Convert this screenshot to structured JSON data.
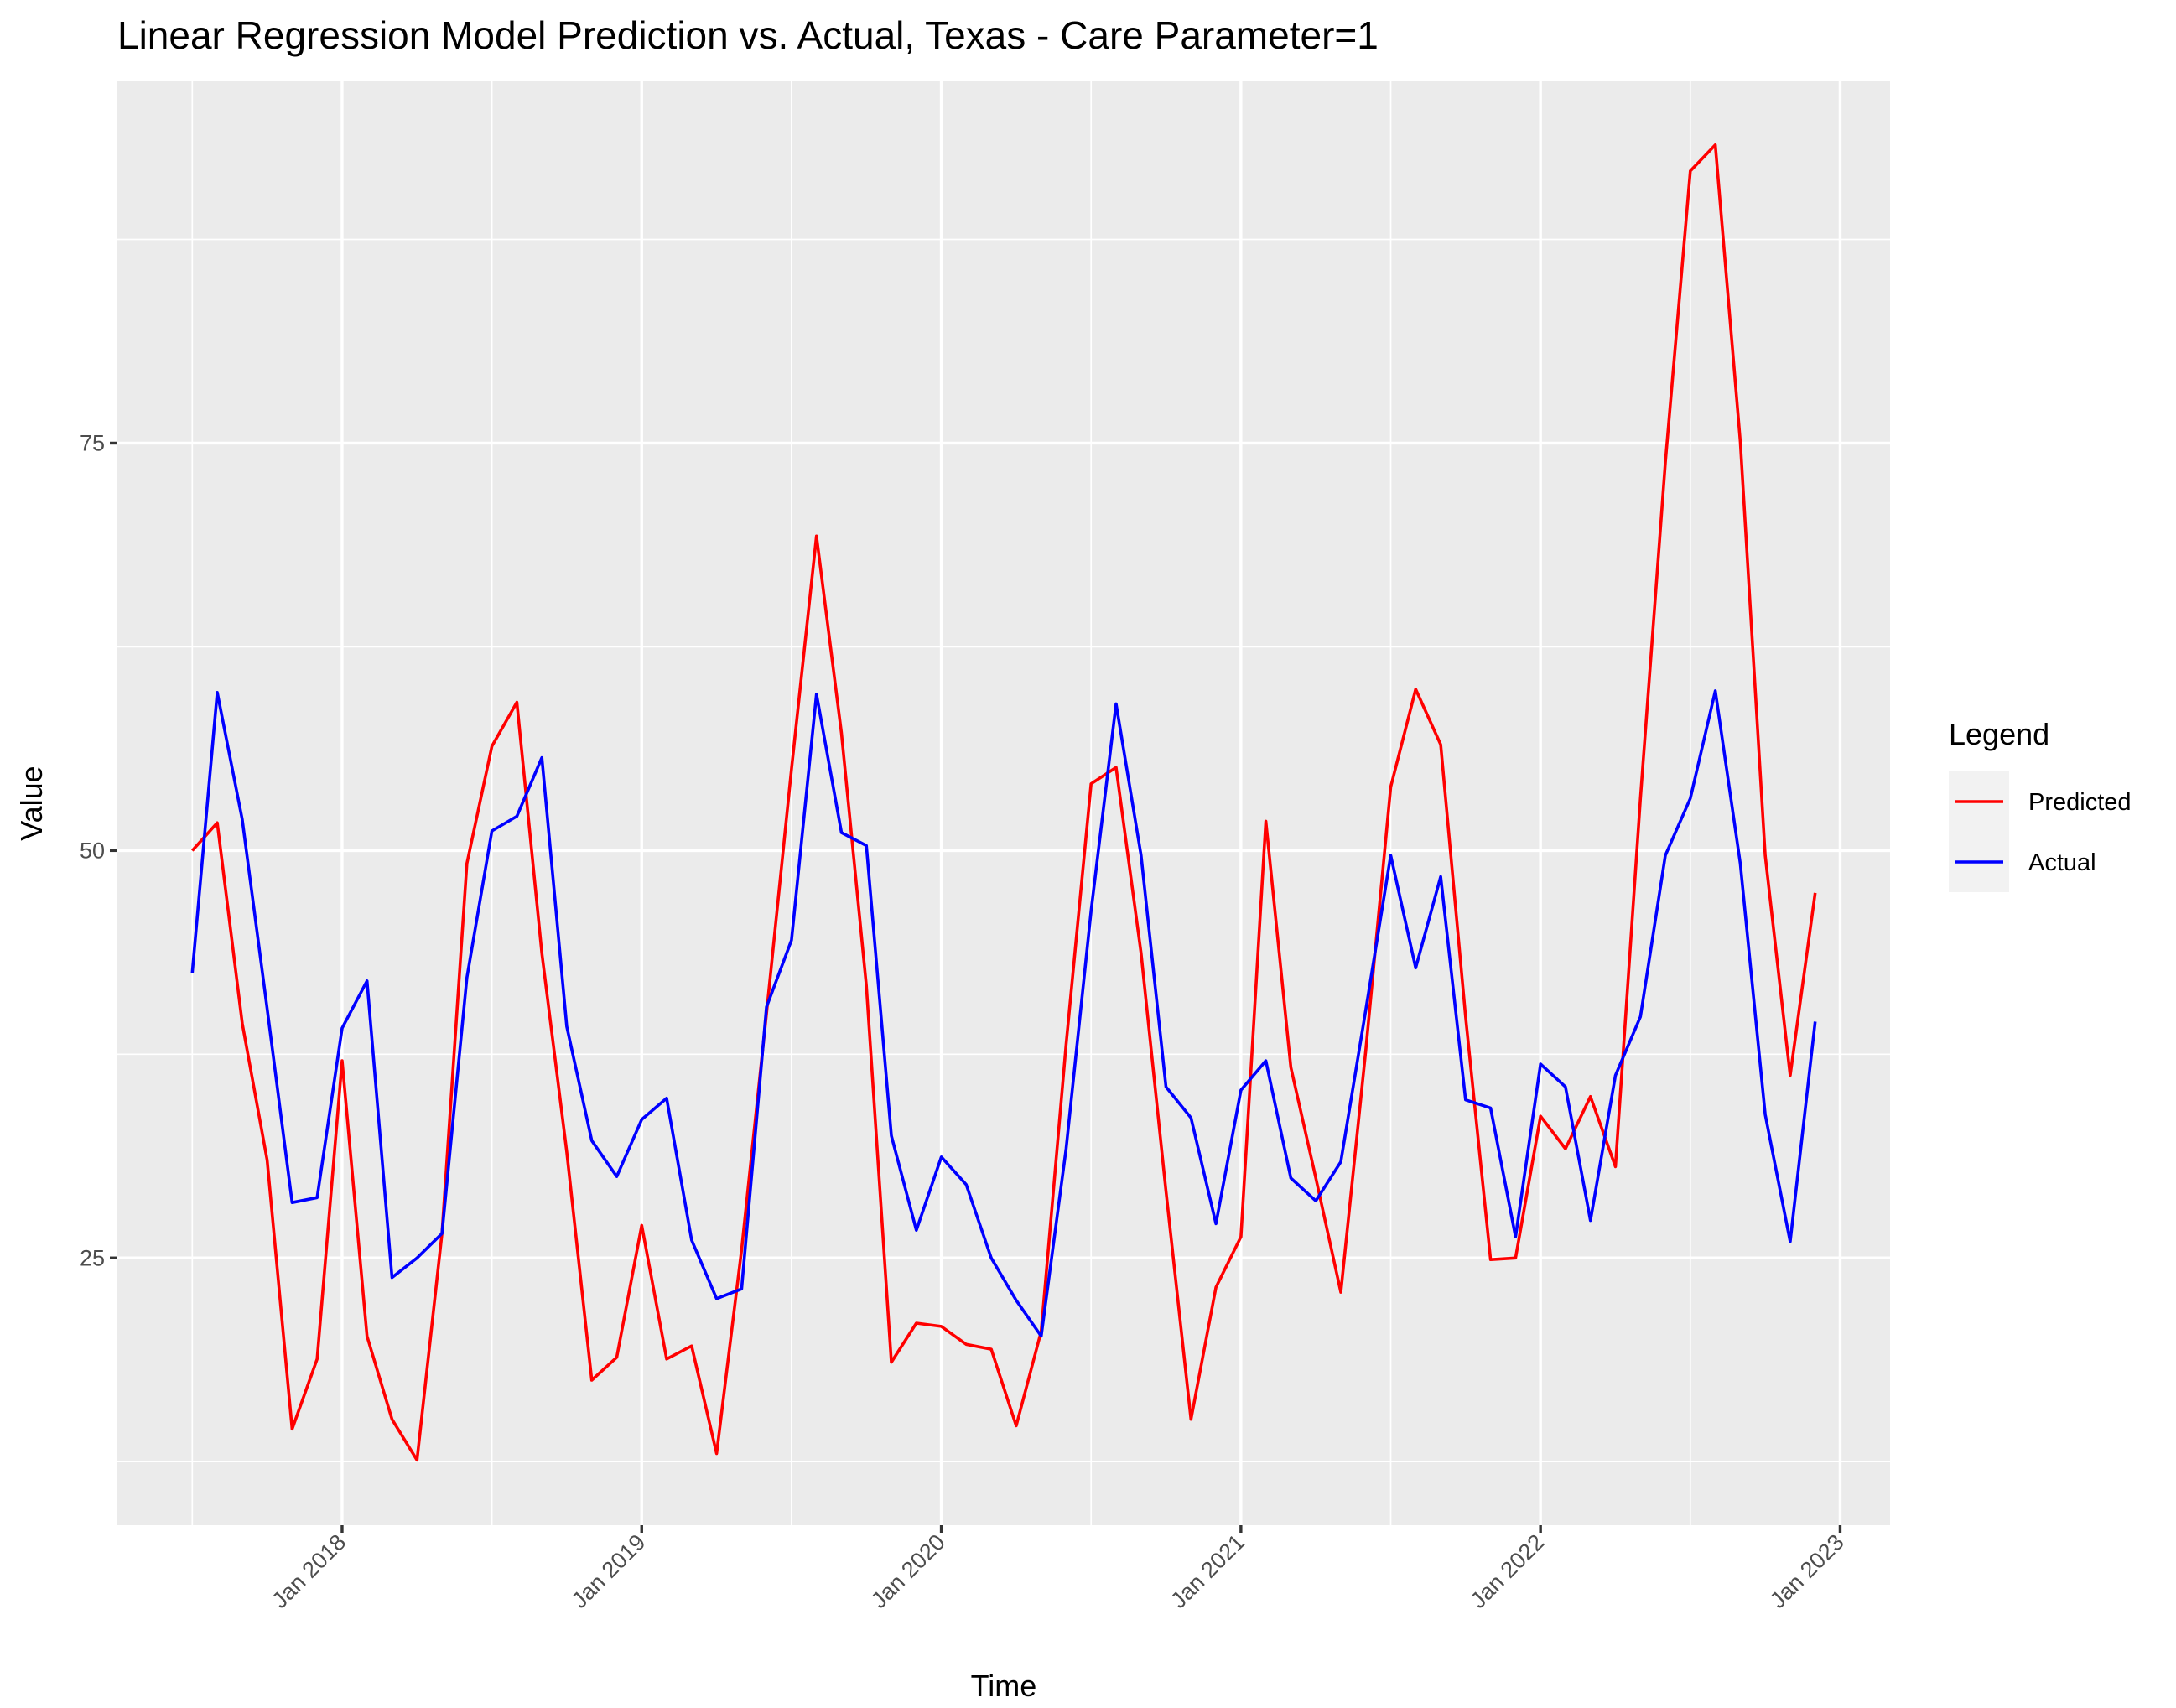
{
  "chart_data": {
    "type": "line",
    "title": "Linear Regression Model Prediction vs. Actual, Texas - Care Parameter=1",
    "x_label": "Time",
    "y_label": "Value",
    "legend_title": "Legend",
    "legend_position": "right",
    "x": [
      "2017-07",
      "2017-08",
      "2017-09",
      "2017-10",
      "2017-11",
      "2017-12",
      "2018-01",
      "2018-02",
      "2018-03",
      "2018-04",
      "2018-05",
      "2018-06",
      "2018-07",
      "2018-08",
      "2018-09",
      "2018-10",
      "2018-11",
      "2018-12",
      "2019-01",
      "2019-02",
      "2019-03",
      "2019-04",
      "2019-05",
      "2019-06",
      "2019-07",
      "2019-08",
      "2019-09",
      "2019-10",
      "2019-11",
      "2019-12",
      "2020-01",
      "2020-02",
      "2020-03",
      "2020-04",
      "2020-05",
      "2020-06",
      "2020-07",
      "2020-08",
      "2020-09",
      "2020-10",
      "2020-11",
      "2020-12",
      "2021-01",
      "2021-02",
      "2021-03",
      "2021-04",
      "2021-05",
      "2021-06",
      "2021-07",
      "2021-08",
      "2021-09",
      "2021-10",
      "2021-11",
      "2021-12",
      "2022-01",
      "2022-02",
      "2022-03",
      "2022-04",
      "2022-05",
      "2022-06",
      "2022-07",
      "2022-08",
      "2022-09",
      "2022-10",
      "2022-11",
      "2022-12"
    ],
    "series": [
      {
        "name": "Predicted",
        "color": "#ff0000",
        "values": [
          50.0,
          51.7,
          39.4,
          31.0,
          14.5,
          18.8,
          37.1,
          20.2,
          15.1,
          12.6,
          26.5,
          49.2,
          56.4,
          59.1,
          43.7,
          31.5,
          17.5,
          18.9,
          27.0,
          18.8,
          19.6,
          13.0,
          25.5,
          40.0,
          55.0,
          69.3,
          57.2,
          41.7,
          18.6,
          21.0,
          20.8,
          19.7,
          19.4,
          14.7,
          20.5,
          38.1,
          54.1,
          55.1,
          43.7,
          29.1,
          15.1,
          23.2,
          26.3,
          51.8,
          36.7,
          29.9,
          22.9,
          37.7,
          53.9,
          59.9,
          56.5,
          39.8,
          24.9,
          25.0,
          33.7,
          31.7,
          34.9,
          30.6,
          53.2,
          73.8,
          91.7,
          93.3,
          75.1,
          49.7,
          36.2,
          47.4
        ]
      },
      {
        "name": "Actual",
        "color": "#0000ff",
        "values": [
          42.5,
          59.7,
          51.9,
          40.3,
          28.4,
          28.7,
          39.1,
          42.0,
          23.8,
          25.0,
          26.5,
          42.2,
          51.2,
          52.1,
          55.7,
          39.2,
          32.2,
          30.0,
          33.5,
          34.8,
          26.1,
          22.5,
          23.1,
          40.4,
          44.5,
          59.6,
          51.1,
          50.3,
          32.5,
          26.7,
          31.2,
          29.5,
          25.0,
          22.4,
          20.2,
          31.7,
          46.3,
          59.0,
          49.7,
          35.5,
          33.6,
          27.1,
          35.3,
          37.1,
          29.9,
          28.5,
          30.9,
          40.2,
          49.7,
          42.8,
          48.4,
          34.7,
          34.2,
          26.3,
          36.9,
          35.5,
          27.3,
          36.2,
          39.8,
          49.7,
          53.2,
          59.8,
          49.2,
          33.8,
          26.0,
          39.5
        ]
      }
    ],
    "xlim": [
      "2017-04",
      "2023-03"
    ],
    "xticks": [
      {
        "value": "2018-01",
        "label": "Jan 2018"
      },
      {
        "value": "2019-01",
        "label": "Jan 2019"
      },
      {
        "value": "2020-01",
        "label": "Jan 2020"
      },
      {
        "value": "2021-01",
        "label": "Jan 2021"
      },
      {
        "value": "2022-01",
        "label": "Jan 2022"
      },
      {
        "value": "2023-01",
        "label": "Jan 2023"
      }
    ],
    "ylim": [
      8.6,
      97.2
    ],
    "yticks": [
      25,
      50,
      75
    ],
    "grid": true
  }
}
